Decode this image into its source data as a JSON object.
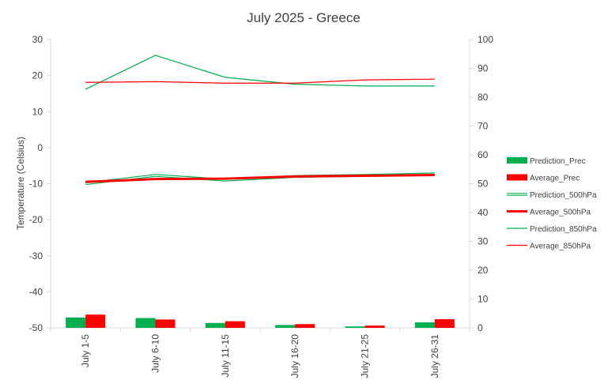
{
  "chart_data": {
    "type": "bar+line",
    "title": "July 2025 - Greece",
    "ylabel": "Temperature (Celsius)",
    "y2label": "",
    "ylim": [
      -50,
      30
    ],
    "y2lim": [
      0,
      100
    ],
    "yticks": [
      30,
      20,
      10,
      0,
      -10,
      -20,
      -30,
      -40,
      -50
    ],
    "y2ticks": [
      100,
      90,
      80,
      70,
      60,
      50,
      40,
      30,
      20,
      10,
      0
    ],
    "categories": [
      "July 1-5",
      "July 6-10",
      "July 11-15",
      "July 16-20",
      "July 21-25",
      "July 26-31"
    ],
    "legend_position": "right",
    "grid": false,
    "series": [
      {
        "name": "Prediction_Prec",
        "type": "bar",
        "axis": "y2",
        "color": "#00b050",
        "values": [
          3.6,
          3.4,
          1.7,
          1.0,
          0.5,
          1.9
        ]
      },
      {
        "name": "Average_Prec",
        "type": "bar",
        "axis": "y2",
        "color": "#ff0000",
        "values": [
          4.6,
          2.9,
          2.3,
          1.3,
          0.8,
          3.0
        ]
      },
      {
        "name": "Prediction_500hPa",
        "type": "line",
        "axis": "y",
        "color": "#00b050",
        "style": "double",
        "values": [
          -10.0,
          -7.7,
          -9.0,
          -8.0,
          -7.7,
          -7.3
        ]
      },
      {
        "name": "Average_500hPa",
        "type": "line",
        "axis": "y",
        "color": "#ff0000",
        "style": "thick",
        "values": [
          -9.5,
          -8.7,
          -8.6,
          -8.0,
          -7.8,
          -7.6
        ]
      },
      {
        "name": "Prediction_850hPa",
        "type": "line",
        "axis": "y",
        "color": "#00b050",
        "style": "thin",
        "values": [
          16.2,
          25.6,
          19.5,
          17.6,
          17.1,
          17.1
        ]
      },
      {
        "name": "Average_850hPa",
        "type": "line",
        "axis": "y",
        "color": "#ff0000",
        "style": "thin",
        "values": [
          18.1,
          18.3,
          17.9,
          17.9,
          18.8,
          19.0
        ]
      }
    ]
  }
}
